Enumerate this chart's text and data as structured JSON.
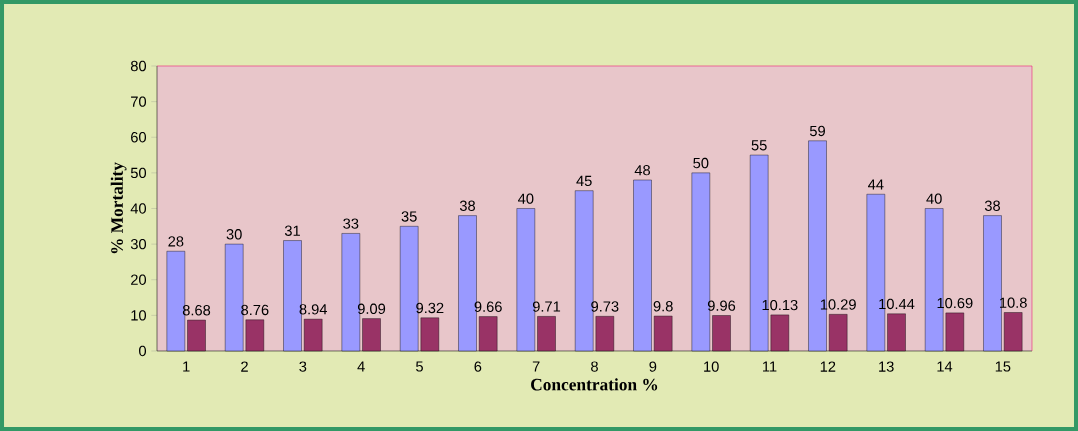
{
  "chart_data": {
    "type": "bar",
    "xlabel": "Concentration %",
    "ylabel": "% Mortality",
    "categories": [
      "1",
      "2",
      "3",
      "4",
      "5",
      "6",
      "7",
      "8",
      "9",
      "10",
      "11",
      "12",
      "13",
      "14",
      "15"
    ],
    "series": [
      {
        "color": "#9999ff",
        "values": [
          28,
          30,
          31,
          33,
          35,
          38,
          40,
          45,
          48,
          50,
          55,
          59,
          44,
          40,
          38
        ]
      },
      {
        "color": "#993366",
        "values": [
          8.68,
          8.76,
          8.94,
          9.09,
          9.32,
          9.66,
          9.71,
          9.73,
          9.8,
          9.96,
          10.13,
          10.29,
          10.44,
          10.69,
          10.8
        ]
      }
    ],
    "ylim": [
      0,
      80
    ],
    "yticks": [
      0,
      10,
      20,
      30,
      40,
      50,
      60,
      70,
      80
    ],
    "data_labels": true,
    "grid": false
  }
}
